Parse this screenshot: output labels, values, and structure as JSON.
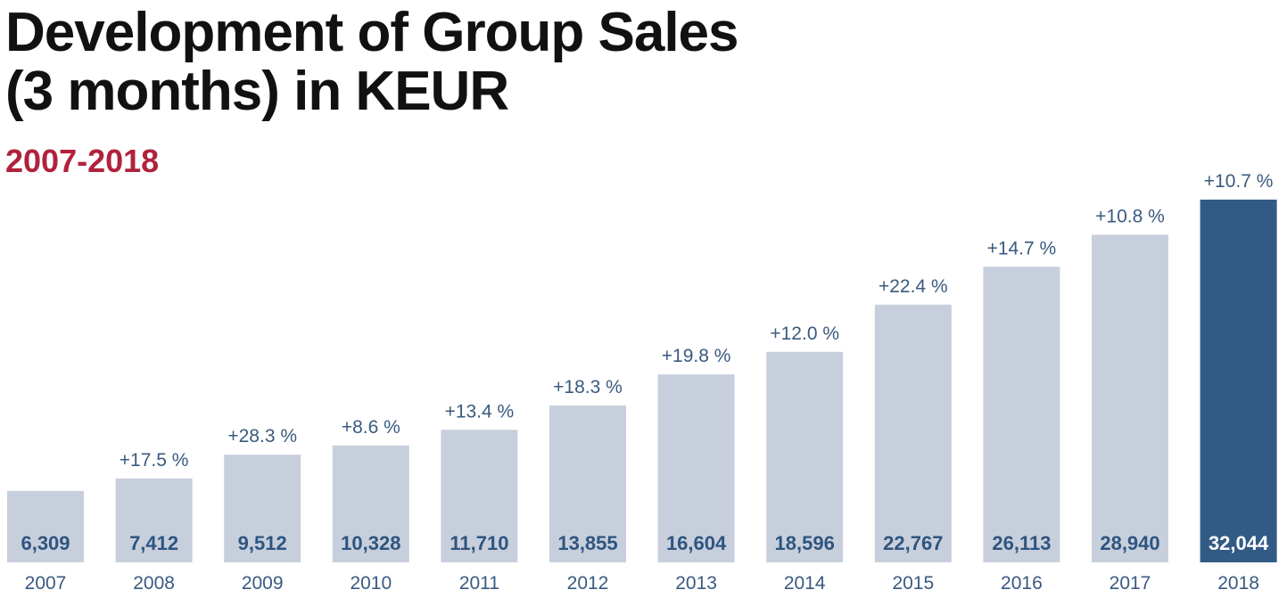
{
  "header": {
    "title": "Development of Group Sales\n(3 months) in KEUR",
    "subtitle": "2007-2018"
  },
  "colors": {
    "bar_default": "#c8cfdc",
    "bar_highlight": "#315b84",
    "value_text_default": "#2e5580",
    "value_text_highlight": "#ffffff",
    "title": "#111111",
    "subtitle": "#b0223c"
  },
  "chart_data": {
    "type": "bar",
    "title": "Development of Group Sales (3 months) in KEUR",
    "subtitle": "2007-2018",
    "xlabel": "",
    "ylabel": "",
    "ylim": [
      0,
      32044
    ],
    "grid": false,
    "legend": "none",
    "categories": [
      "2007",
      "2008",
      "2009",
      "2010",
      "2011",
      "2012",
      "2013",
      "2014",
      "2015",
      "2016",
      "2017",
      "2018"
    ],
    "values": [
      6309,
      7412,
      9512,
      10328,
      11710,
      13855,
      16604,
      18596,
      22767,
      26113,
      28940,
      32044
    ],
    "value_labels": [
      "6,309",
      "7,412",
      "9,512",
      "10,328",
      "11,710",
      "13,855",
      "16,604",
      "18,596",
      "22,767",
      "26,113",
      "28,940",
      "32,044"
    ],
    "growth_labels": [
      "",
      "+17.5 %",
      "+28.3 %",
      "+8.6 %",
      "+13.4 %",
      "+18.3 %",
      "+19.8 %",
      "+12.0 %",
      "+22.4 %",
      "+14.7 %",
      "+10.8 %",
      "+10.7 %"
    ],
    "highlight_category": "2018"
  }
}
